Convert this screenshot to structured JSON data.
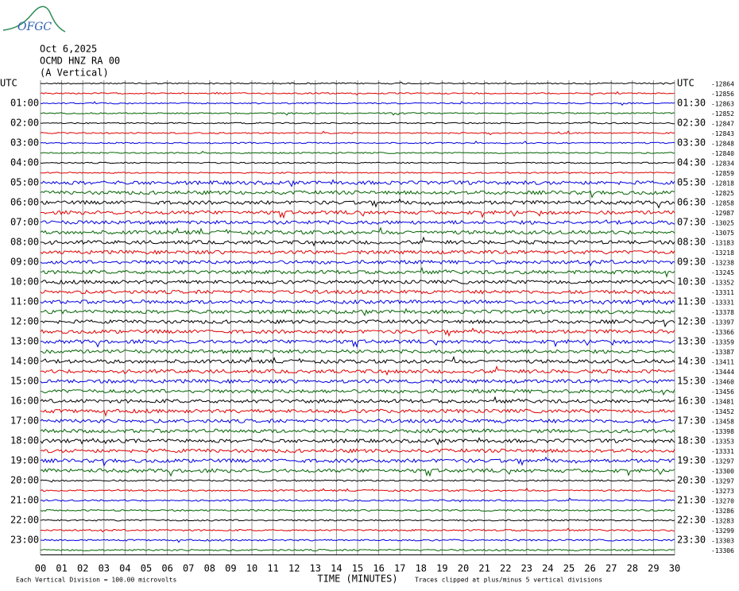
{
  "logo": "OFGC",
  "header": {
    "date": "Oct 6,2025",
    "station": "OCMD HNZ RA 00",
    "component": "(A Vertical)"
  },
  "hour_labels": [
    {
      "left": "UTC",
      "right": "UTC"
    },
    {
      "left": "01:00",
      "right": "01:30"
    },
    {
      "left": "02:00",
      "right": "02:30"
    },
    {
      "left": "03:00",
      "right": "03:30"
    },
    {
      "left": "04:00",
      "right": "04:30"
    },
    {
      "left": "05:00",
      "right": "05:30"
    },
    {
      "left": "06:00",
      "right": "06:30"
    },
    {
      "left": "07:00",
      "right": "07:30"
    },
    {
      "left": "08:00",
      "right": "08:30"
    },
    {
      "left": "09:00",
      "right": "09:30"
    },
    {
      "left": "10:00",
      "right": "10:30"
    },
    {
      "left": "11:00",
      "right": "11:30"
    },
    {
      "left": "12:00",
      "right": "12:30"
    },
    {
      "left": "13:00",
      "right": "13:30"
    },
    {
      "left": "14:00",
      "right": "14:30"
    },
    {
      "left": "15:00",
      "right": "15:30"
    },
    {
      "left": "16:00",
      "right": "16:30"
    },
    {
      "left": "17:00",
      "right": "17:30"
    },
    {
      "left": "18:00",
      "right": "18:30"
    },
    {
      "left": "19:00",
      "right": "19:30"
    },
    {
      "left": "20:00",
      "right": "20:30"
    },
    {
      "left": "21:00",
      "right": "21:30"
    },
    {
      "left": "22:00",
      "right": "22:30"
    },
    {
      "left": "23:00",
      "right": "23:30"
    }
  ],
  "offsets": [
    -12864,
    -12856,
    -12863,
    -12852,
    -12847,
    -12843,
    -12848,
    -12840,
    -12834,
    -12859,
    -12818,
    -12825,
    -12858,
    -12987,
    -13025,
    -13075,
    -13183,
    -13218,
    -13238,
    -13245,
    -13352,
    -13311,
    -13331,
    -13378,
    -13397,
    -13366,
    -13359,
    -13387,
    -13411,
    -13444,
    -13460,
    -13456,
    -13481,
    -13452,
    -13458,
    -13398,
    -13353,
    -13331,
    -13297,
    -13300,
    -13297,
    -13273,
    -13270,
    -13286,
    -13283,
    -13299,
    -13303,
    -13306
  ],
  "trace_colors": [
    "#000000",
    "#e00000",
    "#0000e0",
    "#006400"
  ],
  "x_ticks": [
    "00",
    "01",
    "02",
    "03",
    "04",
    "05",
    "06",
    "07",
    "08",
    "09",
    "10",
    "11",
    "12",
    "13",
    "14",
    "15",
    "16",
    "17",
    "18",
    "19",
    "20",
    "21",
    "22",
    "23",
    "24",
    "25",
    "26",
    "27",
    "28",
    "29",
    "30"
  ],
  "x_label": "TIME (MINUTES)",
  "footer": {
    "scale": "Each Vertical Division =  100.00 microvolts",
    "clip": "Traces clipped at plus/minus 5 vertical divisions"
  }
}
